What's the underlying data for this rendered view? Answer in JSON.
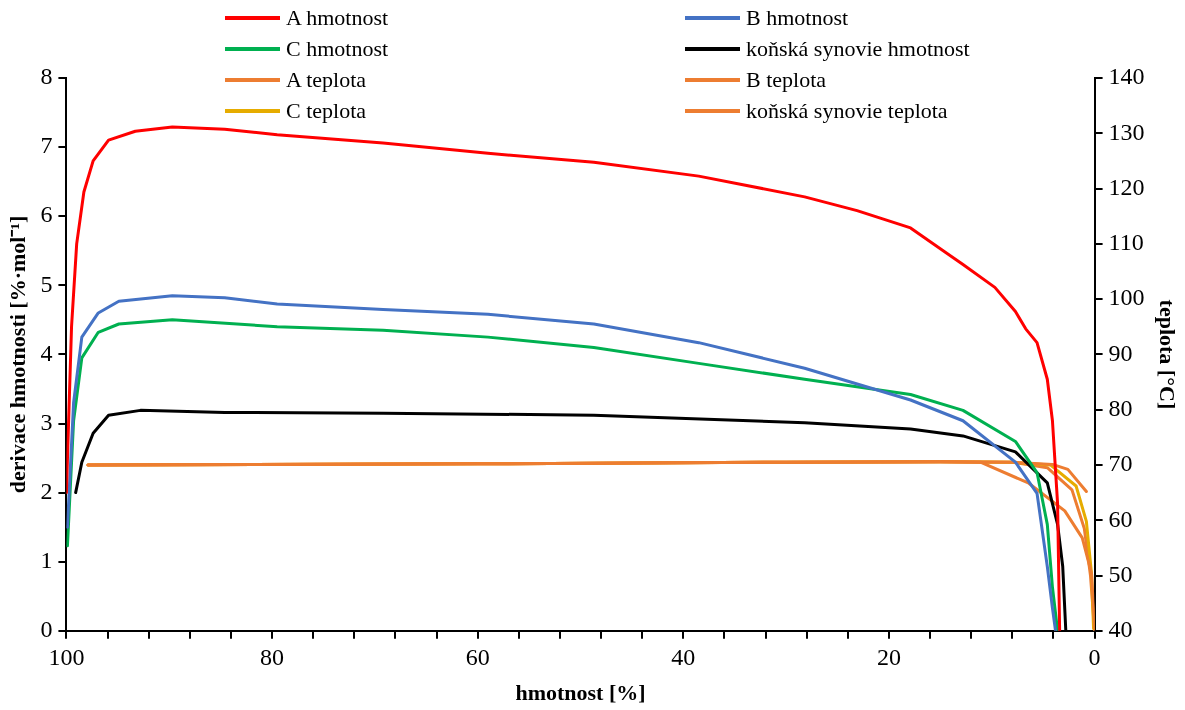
{
  "chart_data": {
    "type": "line",
    "xlabel": "hmotnost [%]",
    "ylabel": "derivace hmotnosti [%·mol⁻¹]",
    "y2label": "teplota [°C]",
    "legend": "top",
    "xlim": [
      100,
      0
    ],
    "xticks": [
      {
        "value": 100,
        "label": "100"
      },
      {
        "value": 96,
        "label": null
      },
      {
        "value": 92,
        "label": null
      },
      {
        "value": 88,
        "label": null
      },
      {
        "value": 84,
        "label": null
      },
      {
        "value": 80,
        "label": "80"
      },
      {
        "value": 76,
        "label": null
      },
      {
        "value": 72,
        "label": null
      },
      {
        "value": 68,
        "label": null
      },
      {
        "value": 64,
        "label": null
      },
      {
        "value": 60,
        "label": "60"
      },
      {
        "value": 56,
        "label": null
      },
      {
        "value": 52,
        "label": null
      },
      {
        "value": 48,
        "label": null
      },
      {
        "value": 44,
        "label": null
      },
      {
        "value": 40,
        "label": "40"
      },
      {
        "value": 36,
        "label": null
      },
      {
        "value": 32,
        "label": null
      },
      {
        "value": 28,
        "label": null
      },
      {
        "value": 24,
        "label": null
      },
      {
        "value": 20,
        "label": "20"
      },
      {
        "value": 16,
        "label": null
      },
      {
        "value": 12,
        "label": null
      },
      {
        "value": 8,
        "label": null
      },
      {
        "value": 4,
        "label": null
      },
      {
        "value": 0,
        "label": "0"
      }
    ],
    "ylim": [
      0,
      8
    ],
    "yticks": [
      0,
      1,
      2,
      3,
      4,
      5,
      6,
      7,
      8
    ],
    "y2lim": [
      40,
      140
    ],
    "y2ticks": [
      40,
      50,
      60,
      70,
      80,
      90,
      100,
      110,
      120,
      130,
      140
    ],
    "series": [
      {
        "name": "A hmotnost",
        "color": "#ff0000",
        "x": [
          100,
          99.5,
          99.0,
          98.3,
          97.4,
          95.9,
          93.3,
          89.7,
          84.6,
          79.5,
          69.2,
          59.0,
          48.7,
          38.5,
          28.2,
          23.1,
          17.9,
          12.8,
          9.7,
          7.7,
          6.7,
          5.6,
          4.6,
          4.1,
          3.6,
          3.4
        ],
        "values": [
          2.0,
          4.4,
          5.6,
          6.35,
          6.8,
          7.1,
          7.23,
          7.29,
          7.26,
          7.18,
          7.06,
          6.91,
          6.78,
          6.58,
          6.28,
          6.08,
          5.83,
          5.3,
          4.97,
          4.62,
          4.37,
          4.17,
          3.64,
          3.04,
          1.84,
          0
        ]
      },
      {
        "name": "B hmotnost",
        "color": "#4472c4",
        "x": [
          99.9,
          99.3,
          98.5,
          96.9,
          94.9,
          89.7,
          84.6,
          79.5,
          69.2,
          59.0,
          48.7,
          38.5,
          28.2,
          17.9,
          12.8,
          7.7,
          5.6,
          4.6,
          4.1,
          3.8
        ],
        "values": [
          1.5,
          3.3,
          4.25,
          4.6,
          4.77,
          4.85,
          4.82,
          4.73,
          4.65,
          4.58,
          4.44,
          4.17,
          3.8,
          3.34,
          3.04,
          2.44,
          1.99,
          0.93,
          0.33,
          0
        ]
      },
      {
        "name": "C hmotnost",
        "color": "#00b050",
        "x": [
          99.9,
          99.3,
          98.5,
          96.9,
          94.9,
          89.7,
          79.5,
          69.2,
          59.0,
          48.7,
          38.5,
          28.2,
          17.9,
          12.8,
          7.7,
          5.6,
          4.6,
          4.1,
          3.6
        ],
        "values": [
          1.23,
          3.04,
          3.95,
          4.32,
          4.44,
          4.5,
          4.4,
          4.35,
          4.25,
          4.1,
          3.87,
          3.64,
          3.42,
          3.19,
          2.74,
          2.29,
          1.54,
          0.63,
          0
        ]
      },
      {
        "name": "koňská synovie hmotnost",
        "color": "#000000",
        "x": [
          99.1,
          98.5,
          97.4,
          95.9,
          92.8,
          84.6,
          69.2,
          48.7,
          28.2,
          17.9,
          12.8,
          7.7,
          4.6,
          3.6,
          3.1,
          2.8
        ],
        "values": [
          2.0,
          2.44,
          2.86,
          3.12,
          3.19,
          3.16,
          3.15,
          3.12,
          3.01,
          2.92,
          2.82,
          2.59,
          2.14,
          1.54,
          0.93,
          0
        ]
      },
      {
        "name": "A teplota",
        "color": "#ed7d31",
        "axis": "y2",
        "x": [
          97.9,
          60,
          30,
          15,
          8,
          4.1,
          2.6,
          0.8
        ],
        "values": [
          70.0,
          70.2,
          70.5,
          70.6,
          70.5,
          70.1,
          69.2,
          65.2
        ]
      },
      {
        "name": "B teplota",
        "color": "#ed7d31",
        "axis": "y2",
        "x": [
          97.9,
          60,
          30,
          15,
          11.1,
          6.4,
          2.9,
          1.2,
          0.3,
          0
        ],
        "values": [
          70.0,
          70.2,
          70.5,
          70.6,
          70.5,
          66.7,
          61.7,
          56.8,
          50.4,
          40.4
        ]
      },
      {
        "name": "C teplota",
        "color": "#e6ac00",
        "axis": "y2",
        "x": [
          97.9,
          60,
          30,
          15,
          8,
          4.3,
          1.8,
          0.8,
          0.3,
          0.1
        ],
        "values": [
          70.0,
          70.2,
          70.5,
          70.6,
          70.5,
          70.0,
          66.2,
          59.8,
          50.4,
          40.4
        ]
      },
      {
        "name": "koňská synovie teplota",
        "color": "#ed7d31",
        "axis": "y2",
        "x": [
          97.9,
          60,
          30,
          15,
          8,
          4.6,
          2.2,
          1.0,
          0.4,
          0
        ],
        "values": [
          70.0,
          70.2,
          70.5,
          70.6,
          70.5,
          69.5,
          65.5,
          58.5,
          50.0,
          40.0
        ]
      }
    ]
  }
}
